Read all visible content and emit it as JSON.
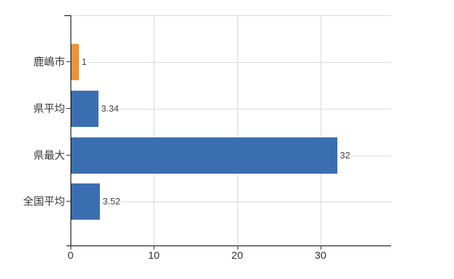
{
  "chart_data": {
    "type": "bar",
    "orientation": "horizontal",
    "title": "",
    "xlabel": "",
    "ylabel": "",
    "categories": [
      "鹿嶋市",
      "県平均",
      "県最大",
      "全国平均"
    ],
    "values": [
      1,
      3.34,
      32,
      3.52
    ],
    "value_labels": [
      "1",
      "3.34",
      "32",
      "3.52"
    ],
    "bar_colors": [
      "#ED9236",
      "#3B6EB1",
      "#3B6EB1",
      "#3B6EB1"
    ],
    "x_ticks": [
      0,
      10,
      20,
      30
    ],
    "x_tick_labels": [
      "0",
      "10",
      "20",
      "30"
    ],
    "xlim": [
      0,
      38.5
    ],
    "grid": true,
    "legend_position": "none"
  },
  "colors": {
    "grid": "#D9D9D9",
    "axis": "#000000",
    "tick_text": "#333333",
    "value_text": "#404040",
    "background": "#FFFFFF"
  }
}
